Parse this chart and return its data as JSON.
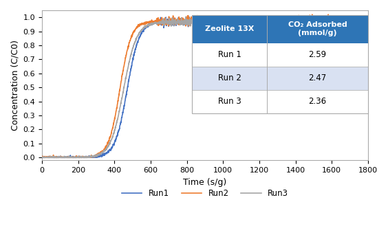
{
  "title": "",
  "xlabel": "Time (s/g)",
  "ylabel": "Concentration (C/C0)",
  "xlim": [
    0,
    1800
  ],
  "ylim": [
    -0.02,
    1.05
  ],
  "xticks": [
    0,
    200,
    400,
    600,
    800,
    1000,
    1200,
    1400,
    1600,
    1800
  ],
  "yticks": [
    0,
    0.1,
    0.2,
    0.3,
    0.4,
    0.5,
    0.6,
    0.7,
    0.8,
    0.9,
    1
  ],
  "run1_color": "#4472C4",
  "run2_color": "#ED7D31",
  "run3_color": "#A5A5A5",
  "run1_label": "Run1",
  "run2_label": "Run2",
  "run3_label": "Run3",
  "table_header_bg": "#2E75B6",
  "table_header_text": "#FFFFFF",
  "table_row_bg1": "#FFFFFF",
  "table_row_bg2": "#D9E1F2",
  "table_col1_header": "Zeolite 13X",
  "table_col2_header": "CO₂ Adsorbed\n(mmol/g)",
  "table_rows": [
    [
      "Run 1",
      "2.59"
    ],
    [
      "Run 2",
      "2.47"
    ],
    [
      "Run 3",
      "2.36"
    ]
  ],
  "run1_breakthrough": 470,
  "run2_breakthrough": 430,
  "run3_breakthrough": 450,
  "noise_amplitude": 0.015,
  "plateau": 0.97,
  "background_color": "#FFFFFF"
}
